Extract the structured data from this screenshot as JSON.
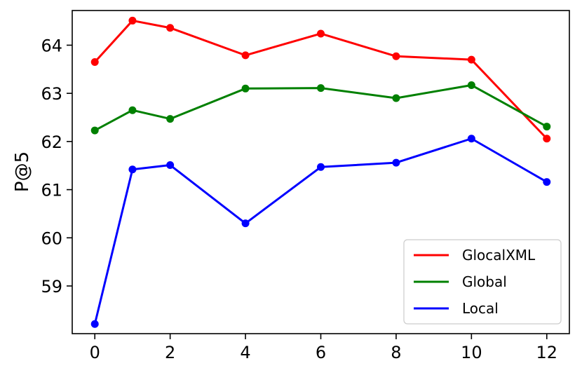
{
  "chart_data": {
    "type": "line",
    "title": "",
    "xlabel": "",
    "ylabel": "P@5",
    "x": [
      0,
      1,
      2,
      4,
      6,
      8,
      10,
      12
    ],
    "xticks": [
      0,
      2,
      4,
      6,
      8,
      10,
      12
    ],
    "yticks": [
      59,
      60,
      61,
      62,
      63,
      64
    ],
    "xlim": [
      -0.6,
      12.6
    ],
    "ylim": [
      58.01,
      64.72
    ],
    "grid": false,
    "legend_position": "bottom-right",
    "series": [
      {
        "name": "GlocalXML",
        "color": "#ff0000",
        "values": [
          63.65,
          64.51,
          64.36,
          63.79,
          64.24,
          63.77,
          63.7,
          62.06
        ]
      },
      {
        "name": "Global",
        "color": "#008000",
        "values": [
          62.23,
          62.65,
          62.47,
          63.1,
          63.11,
          62.9,
          63.17,
          62.31
        ]
      },
      {
        "name": "Local",
        "color": "#0000ff",
        "values": [
          58.21,
          61.42,
          61.51,
          60.3,
          61.47,
          61.56,
          62.06,
          61.16
        ]
      }
    ]
  }
}
